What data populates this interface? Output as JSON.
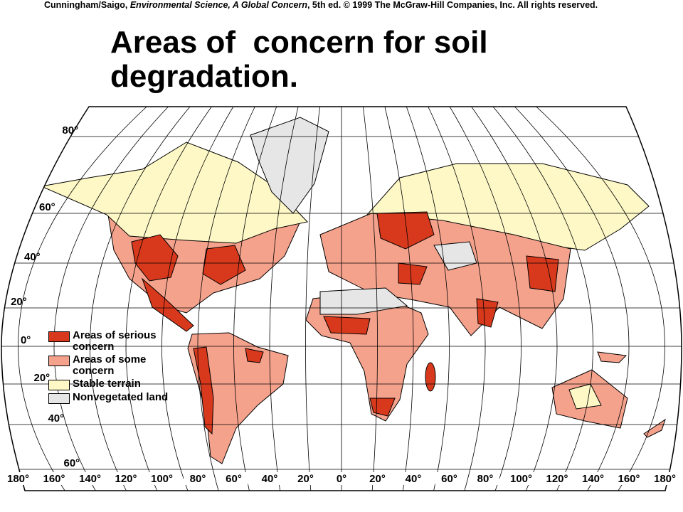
{
  "header": {
    "credit": [
      "Cunningham/Saigo, ",
      "Environmental Science, A Global Concern",
      ", 5th ed. © 1999 The McGraw-Hill Companies, Inc. All rights reserved."
    ]
  },
  "title": [
    "Areas of  concern for soil",
    "degradation."
  ],
  "map": {
    "latitude_labels": [
      "80°",
      "60°",
      "40°",
      "20°",
      "0°",
      "20°",
      "40°",
      "60°"
    ],
    "longitude_labels": [
      "180°",
      "160°",
      "140°",
      "120°",
      "100°",
      "80°",
      "60°",
      "40°",
      "20°",
      "0°",
      "20°",
      "40°",
      "60°",
      "80°",
      "100°",
      "120°",
      "140°",
      "160°",
      "180°"
    ],
    "legend": [
      {
        "label": "Areas of serious concern",
        "color": "#d8391c"
      },
      {
        "label": "Areas of some concern",
        "color": "#f5a28c"
      },
      {
        "label": "Stable terrain",
        "color": "#fdf8c6"
      },
      {
        "label": "Nonvegetated land",
        "color": "#e6e6e6"
      }
    ]
  }
}
